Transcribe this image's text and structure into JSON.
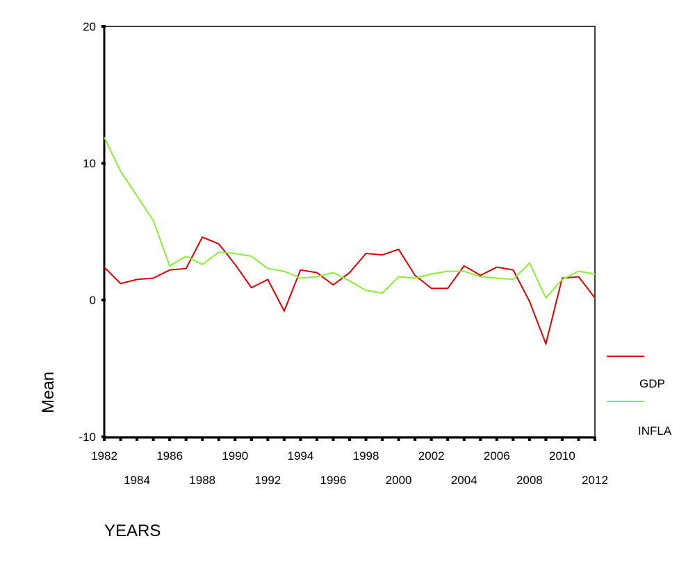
{
  "chart_data": {
    "type": "line",
    "title": "",
    "xlabel": "YEARS",
    "ylabel": "Mean",
    "xlim": [
      1982,
      2012
    ],
    "ylim": [
      -10,
      20
    ],
    "yticks": [
      -10,
      0,
      10,
      20
    ],
    "xticks_row1": [
      1982,
      1986,
      1990,
      1994,
      1998,
      2002,
      2006,
      2010
    ],
    "xticks_row2": [
      1984,
      1988,
      1992,
      1996,
      2000,
      2004,
      2008,
      2012
    ],
    "grid": false,
    "legend_placement": "right",
    "x": [
      1982,
      1983,
      1984,
      1985,
      1986,
      1987,
      1988,
      1989,
      1990,
      1991,
      1992,
      1993,
      1994,
      1995,
      1996,
      1997,
      1998,
      1999,
      2000,
      2001,
      2002,
      2003,
      2004,
      2005,
      2006,
      2007,
      2008,
      2009,
      2010,
      2011,
      2012
    ],
    "series": [
      {
        "name": "GDP",
        "color": "#dd0000",
        "values": [
          2.4,
          1.2,
          1.5,
          1.6,
          2.2,
          2.3,
          4.6,
          4.1,
          2.6,
          0.9,
          1.5,
          -0.8,
          2.2,
          2.0,
          1.1,
          2.0,
          3.4,
          3.3,
          3.7,
          1.8,
          0.85,
          0.85,
          2.5,
          1.8,
          2.4,
          2.2,
          -0.1,
          -3.2,
          1.6,
          1.7,
          0.15
        ]
      },
      {
        "name": "INFLA",
        "color": "#88ee33",
        "values": [
          11.9,
          9.4,
          7.6,
          5.8,
          2.5,
          3.2,
          2.6,
          3.5,
          3.4,
          3.2,
          2.3,
          2.1,
          1.6,
          1.7,
          2.0,
          1.4,
          0.7,
          0.5,
          1.7,
          1.6,
          1.9,
          2.1,
          2.1,
          1.7,
          1.6,
          1.5,
          2.7,
          0.15,
          1.5,
          2.1,
          1.9
        ]
      }
    ]
  }
}
